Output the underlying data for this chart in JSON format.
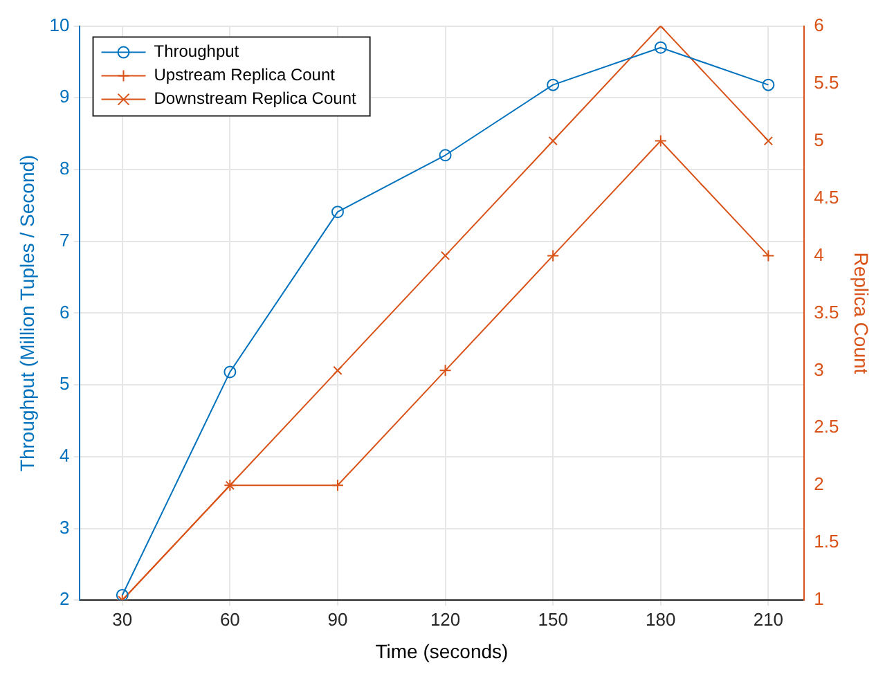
{
  "chart_data": {
    "type": "line",
    "xlabel": "Time (seconds)",
    "ylabel": "Throughput (Million Tuples / Second)",
    "y2label": "Replica Count",
    "x": [
      30,
      60,
      90,
      120,
      150,
      180,
      210
    ],
    "series": [
      {
        "name": "Throughput",
        "color": "#0072bd",
        "marker": "circle",
        "values": [
          2.07,
          5.18,
          7.41,
          8.2,
          9.18,
          9.7,
          9.18
        ]
      },
      {
        "name": "Upstream Replica Count",
        "color": "#d95319",
        "marker": "plus",
        "axis": "y2",
        "values": [
          1,
          2,
          2,
          3,
          4,
          5,
          4
        ]
      },
      {
        "name": "Downstream Replica Count",
        "color": "#d95319",
        "marker": "cross",
        "axis": "y2",
        "values": [
          1,
          2,
          3,
          4,
          5,
          6,
          5
        ]
      }
    ],
    "xlim": [
      18,
      220
    ],
    "xticks": [
      30,
      60,
      90,
      120,
      150,
      180,
      210
    ],
    "ylim": [
      2,
      10
    ],
    "yticks": [
      2,
      3,
      4,
      5,
      6,
      7,
      8,
      9,
      10
    ],
    "y2lim": [
      1,
      6
    ],
    "y2ticks": [
      1,
      1.5,
      2,
      2.5,
      3,
      3.5,
      4,
      4.5,
      5,
      5.5,
      6
    ],
    "grid": true,
    "legend": "top left",
    "line_style": "solid"
  }
}
